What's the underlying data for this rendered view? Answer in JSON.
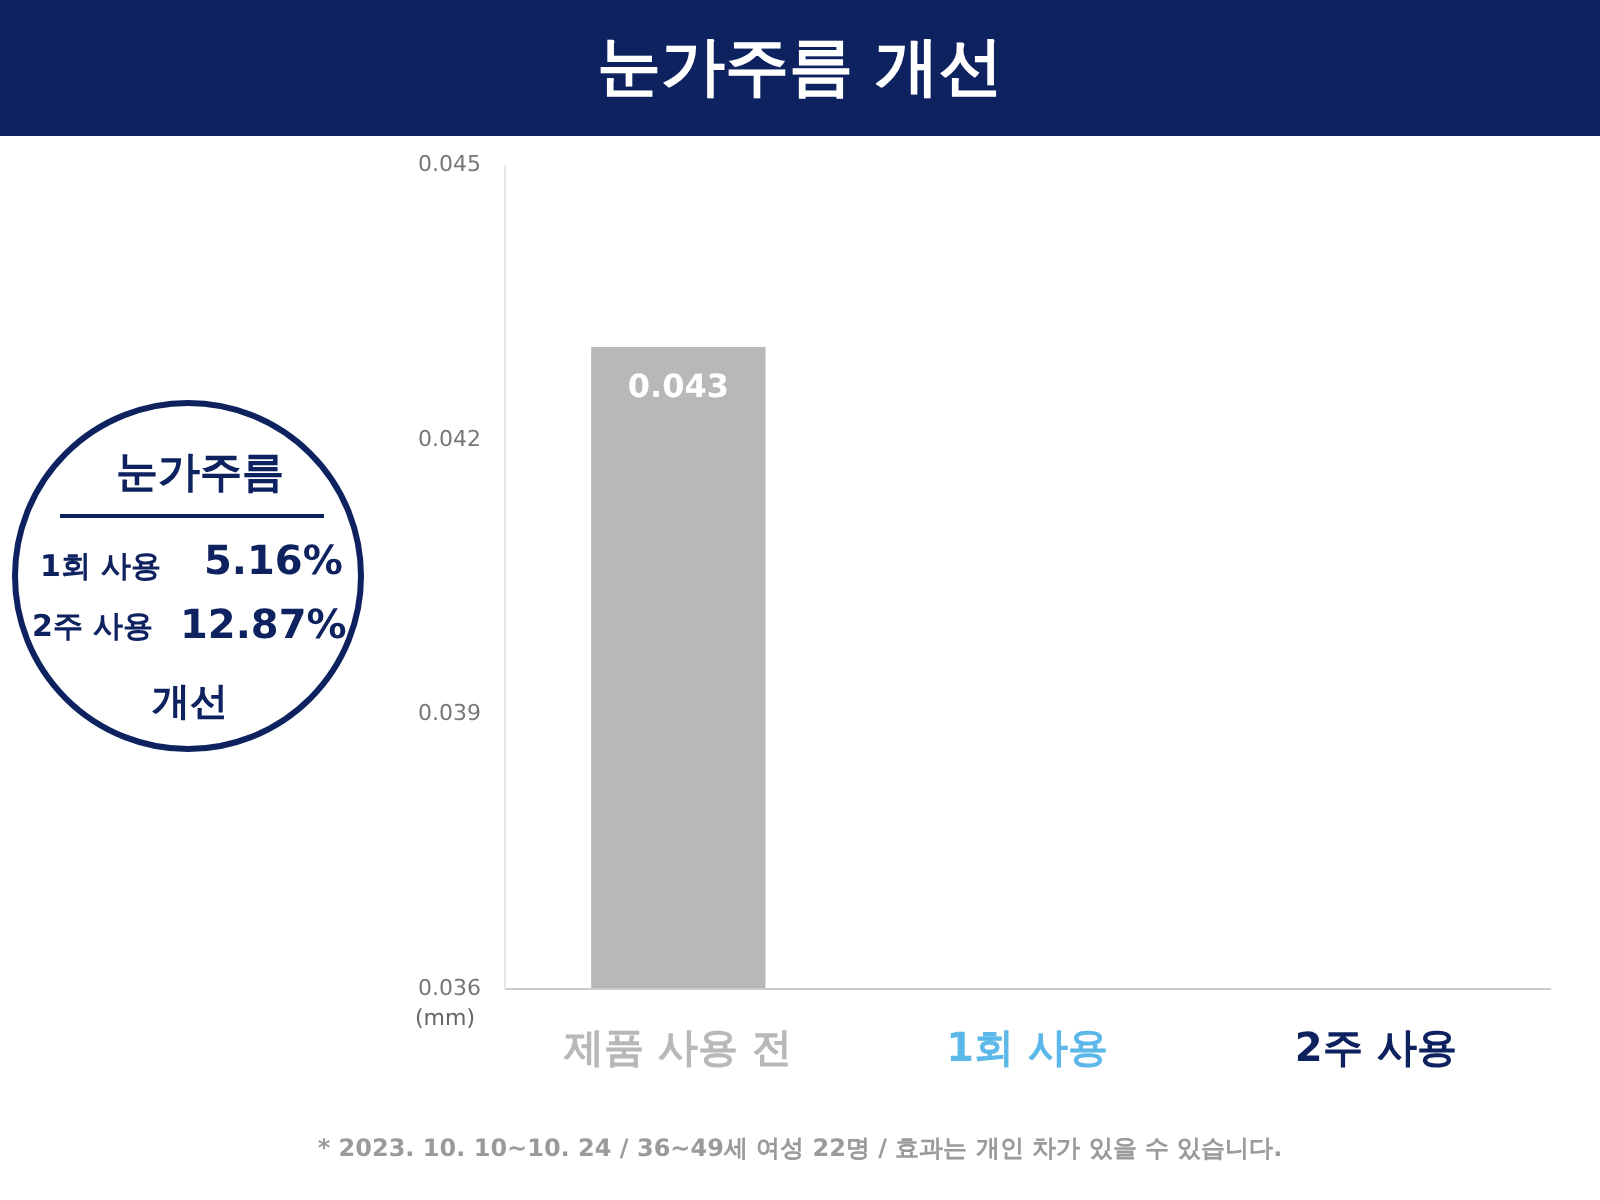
{
  "chart_data": {
    "type": "bar",
    "title": "눈가주름 개선",
    "ylabel": "(mm)",
    "categories": [
      "제품 사용 전",
      "1회 사용",
      "2주 사용"
    ],
    "values": [
      0.043,
      null,
      null
    ],
    "colors": [
      "#b8b8b8",
      "#5bb8e8",
      "#0f2260"
    ],
    "ylim": [
      0.036,
      0.045
    ],
    "yticks": [
      0.036,
      0.039,
      0.042,
      0.045
    ],
    "data_labels": true,
    "grid": false,
    "annotations": [
      "눈가주름",
      "1회 사용",
      "5.16%",
      "2주 사용",
      "12.87%",
      "개선",
      "* 2023. 10. 10~10. 24 / 36~49세 여성 22명 / 효과는 개인 차가 있을 수 있습니다."
    ]
  }
}
